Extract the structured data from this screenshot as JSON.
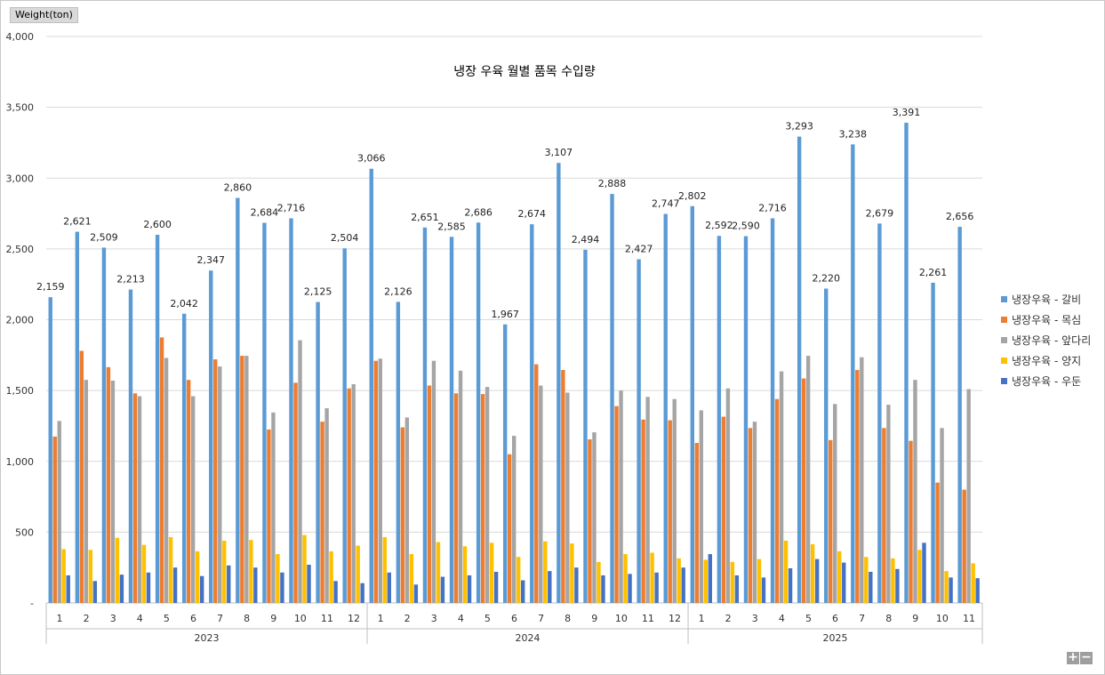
{
  "unit_label": "Weight(ton)",
  "zoom": {
    "plus": "+",
    "minus": "−"
  },
  "chart_data": {
    "type": "bar",
    "title": "냉장 우육 월별 품목 수입량",
    "ylabel": "Weight(ton)",
    "ylim": [
      0,
      4000
    ],
    "yticks": [
      0,
      500,
      1000,
      1500,
      2000,
      2500,
      3000,
      3500,
      4000
    ],
    "ytick_labels": [
      "-",
      "500",
      "1,000",
      "1,500",
      "2,000",
      "2,500",
      "3,000",
      "3,500",
      "4,000"
    ],
    "grid": true,
    "legend_position": "right",
    "groups": [
      {
        "label": "2023",
        "months": [
          "1",
          "2",
          "3",
          "4",
          "5",
          "6",
          "7",
          "8",
          "9",
          "10",
          "11",
          "12"
        ]
      },
      {
        "label": "2024",
        "months": [
          "1",
          "2",
          "3",
          "4",
          "5",
          "6",
          "7",
          "8",
          "9",
          "10",
          "11",
          "12"
        ]
      },
      {
        "label": "2025",
        "months": [
          "1",
          "2",
          "3",
          "4",
          "5",
          "6",
          "7",
          "8",
          "9",
          "10",
          "11"
        ]
      }
    ],
    "series": [
      {
        "name": "냉장우육 - 갈비",
        "color": "#5b9bd5",
        "show_labels": true,
        "values": [
          2159,
          2621,
          2509,
          2213,
          2600,
          2042,
          2347,
          2860,
          2684,
          2716,
          2125,
          2504,
          3066,
          2126,
          2651,
          2585,
          2686,
          1967,
          2674,
          3107,
          2494,
          2888,
          2427,
          2747,
          2802,
          2592,
          2590,
          2716,
          3293,
          2220,
          3238,
          2679,
          3391,
          2261,
          2656
        ],
        "labels": [
          "2,159",
          "2,621",
          "2,509",
          "2,213",
          "2,600",
          "2,042",
          "2,347",
          "2,860",
          "2,684",
          "2,716",
          "2,125",
          "2,504",
          "3,066",
          "2,126",
          "2,651",
          "2,585",
          "2,686",
          "1,967",
          "2,674",
          "3,107",
          "2,494",
          "2,888",
          "2,427",
          "2,747",
          "2,802",
          "2,592",
          "2,590",
          "2,716",
          "3,293",
          "2,220",
          "3,238",
          "2,679",
          "3,391",
          "2,261",
          "2,656"
        ]
      },
      {
        "name": "냉장우육 - 목심",
        "color": "#ed7d31",
        "values": [
          1175,
          1780,
          1665,
          1480,
          1875,
          1575,
          1720,
          1745,
          1225,
          1555,
          1280,
          1515,
          1710,
          1240,
          1535,
          1480,
          1475,
          1050,
          1685,
          1645,
          1155,
          1390,
          1295,
          1290,
          1130,
          1315,
          1235,
          1440,
          1585,
          1150,
          1645,
          1235,
          1145,
          850,
          800
        ]
      },
      {
        "name": "냉장우육 - 앞다리",
        "color": "#a5a5a5",
        "values": [
          1285,
          1575,
          1570,
          1460,
          1730,
          1460,
          1670,
          1745,
          1345,
          1855,
          1375,
          1545,
          1725,
          1310,
          1710,
          1640,
          1525,
          1180,
          1535,
          1485,
          1205,
          1500,
          1455,
          1440,
          1360,
          1515,
          1280,
          1635,
          1745,
          1405,
          1735,
          1400,
          1575,
          1235,
          1510
        ]
      },
      {
        "name": "냉장우육 - 양지",
        "color": "#ffc000",
        "values": [
          380,
          375,
          460,
          410,
          465,
          365,
          440,
          445,
          345,
          480,
          365,
          405,
          465,
          345,
          430,
          400,
          425,
          325,
          435,
          420,
          290,
          345,
          355,
          315,
          305,
          290,
          310,
          440,
          415,
          365,
          325,
          315,
          375,
          225,
          280
        ]
      },
      {
        "name": "냉장우육 - 우둔",
        "color": "#4472c4",
        "values": [
          195,
          155,
          200,
          215,
          250,
          190,
          265,
          250,
          215,
          270,
          155,
          140,
          215,
          130,
          185,
          195,
          220,
          160,
          225,
          250,
          195,
          205,
          215,
          250,
          345,
          195,
          180,
          245,
          310,
          285,
          220,
          240,
          425,
          180,
          175
        ]
      }
    ]
  }
}
